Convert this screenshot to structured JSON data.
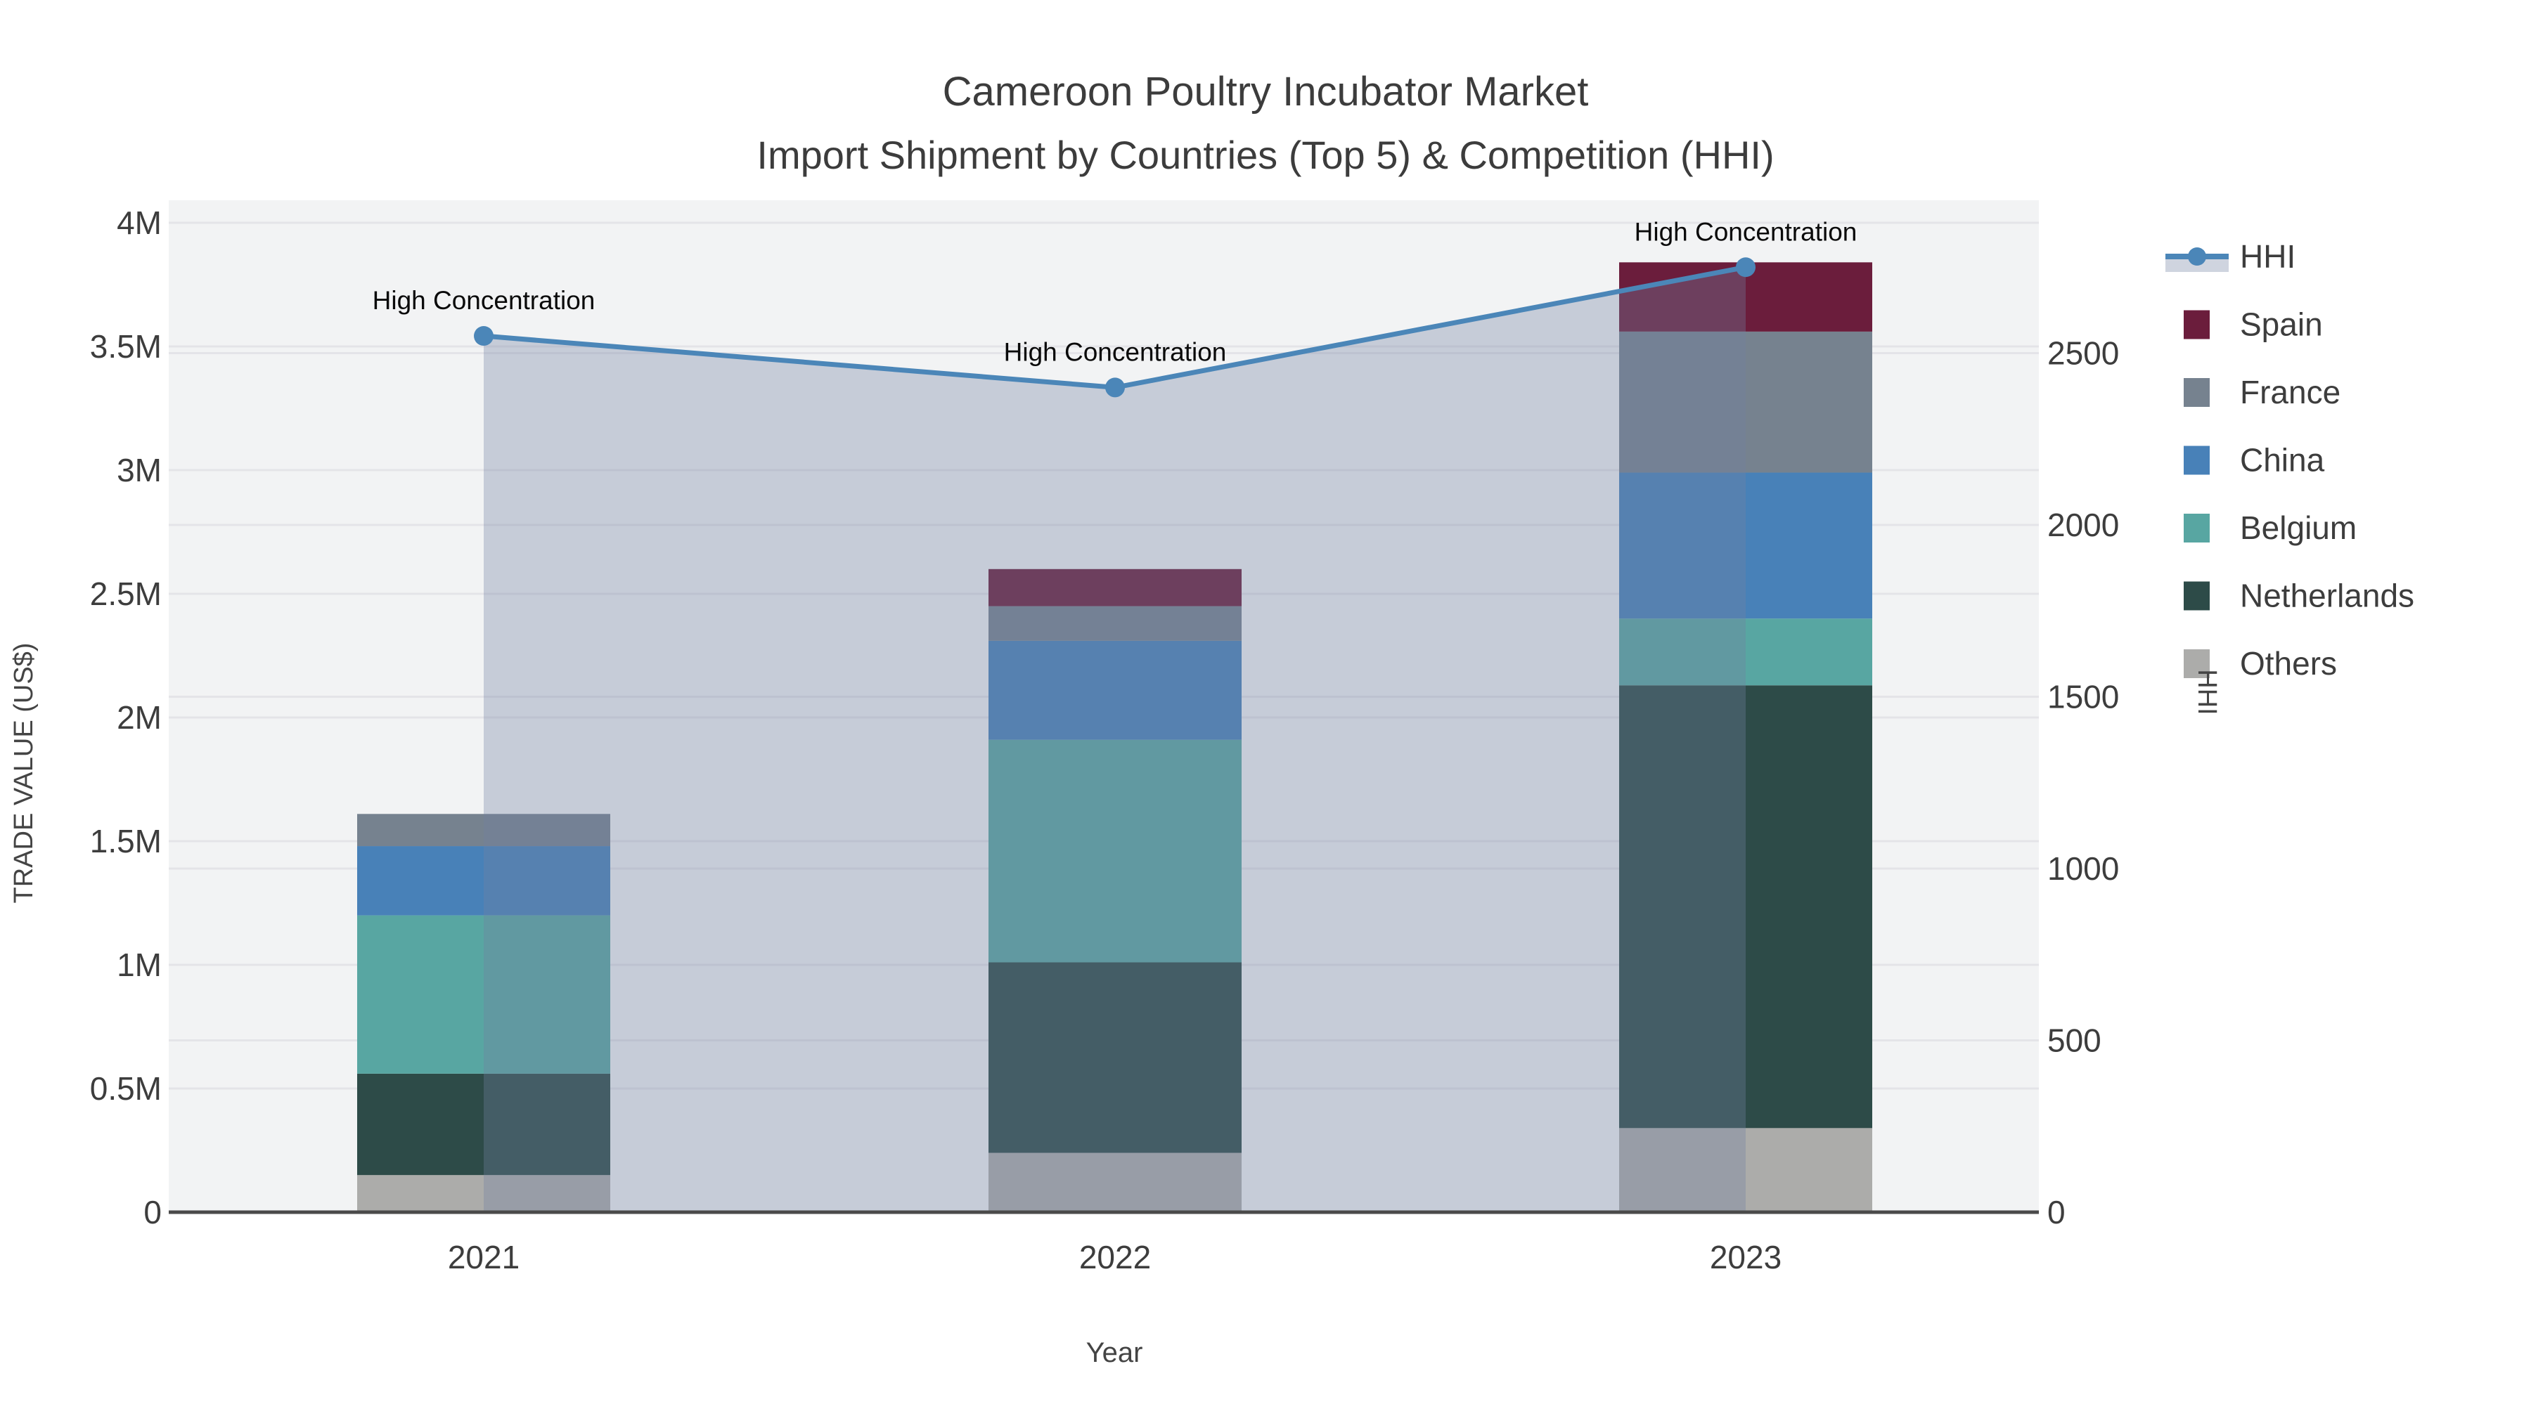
{
  "chart_data": {
    "type": "combo-stacked-bar-line",
    "title": "Cameroon Poultry Incubator Market",
    "subtitle": "Import Shipment by Countries (Top 5) & Competition (HHI)",
    "categories": [
      "2021",
      "2022",
      "2023"
    ],
    "x_axis": {
      "label": "Year"
    },
    "left_axis": {
      "label": "TRADE VALUE (US$)",
      "ticks": [
        "0",
        "0.5M",
        "1M",
        "1.5M",
        "2M",
        "2.5M",
        "3M",
        "3.5M",
        "4M"
      ],
      "tick_values_musd": [
        0,
        0.5,
        1,
        1.5,
        2,
        2.5,
        3,
        3.5,
        4
      ],
      "range_musd": [
        0,
        4.09
      ],
      "grid": true
    },
    "right_axis": {
      "label": "HHI",
      "ticks": [
        "0",
        "500",
        "1000",
        "1500",
        "2000",
        "2500"
      ],
      "tick_values": [
        0,
        500,
        1000,
        1500,
        2000,
        2500
      ],
      "range": [
        0,
        2945
      ],
      "grid": true
    },
    "bar_series_bottom_to_top": [
      {
        "name": "Others",
        "color": "#acacaa",
        "values_musd": [
          0.15,
          0.24,
          0.34
        ]
      },
      {
        "name": "Netherlands",
        "color": "#2d4b48",
        "values_musd": [
          0.41,
          0.77,
          1.79
        ]
      },
      {
        "name": "Belgium",
        "color": "#58a6a2",
        "values_musd": [
          0.64,
          0.9,
          0.27
        ]
      },
      {
        "name": "China",
        "color": "#4881b8",
        "values_musd": [
          0.28,
          0.4,
          0.59
        ]
      },
      {
        "name": "France",
        "color": "#76828f",
        "values_musd": [
          0.13,
          0.14,
          0.57
        ]
      },
      {
        "name": "Spain",
        "color": "#6b1d3c",
        "values_musd": [
          0.0,
          0.15,
          0.28
        ]
      }
    ],
    "bar_totals_musd": [
      1.61,
      2.6,
      3.84
    ],
    "line_series": {
      "name": "HHI",
      "axis": "right",
      "color": "#4b86b8",
      "fill_color": "rgba(115,130,160,0.34)",
      "marker": "circle",
      "values": [
        2550,
        2400,
        2750
      ]
    },
    "annotations": [
      {
        "text": "High Concentration",
        "category": "2021"
      },
      {
        "text": "High Concentration",
        "category": "2022"
      },
      {
        "text": "High Concentration",
        "category": "2023"
      }
    ],
    "legend": {
      "position": "right",
      "order": [
        "HHI",
        "Spain",
        "France",
        "China",
        "Belgium",
        "Netherlands",
        "Others"
      ]
    },
    "colors": {
      "plot_background": "#f2f3f4",
      "gridline": "#e4e4e8",
      "axis_line": "#4a4a4a",
      "tick_text": "#3d3d3d"
    }
  }
}
